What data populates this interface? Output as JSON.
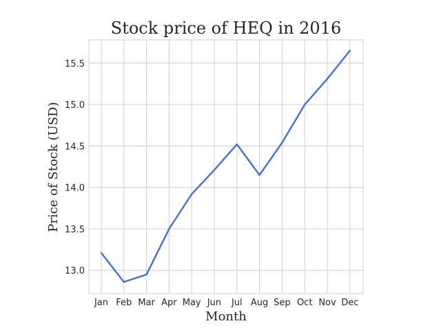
{
  "chart_data": {
    "type": "line",
    "title": "Stock price of HEQ in 2016",
    "xlabel": "Month",
    "ylabel": "Price of Stock (USD)",
    "categories": [
      "Jan",
      "Feb",
      "Mar",
      "Apr",
      "May",
      "Jun",
      "Jul",
      "Aug",
      "Sep",
      "Oct",
      "Nov",
      "Dec"
    ],
    "series": [
      {
        "values": [
          13.21,
          12.86,
          12.95,
          13.5,
          13.92,
          14.21,
          14.52,
          14.15,
          14.54,
          15.0,
          15.31,
          15.65
        ],
        "color": "#4c72c8"
      }
    ],
    "ylim": [
      12.72,
      15.78
    ],
    "yticks": [
      13.0,
      13.5,
      14.0,
      14.5,
      15.0,
      15.5
    ],
    "ytick_labels": [
      "13.0",
      "13.5",
      "14.0",
      "14.5",
      "15.0",
      "15.5"
    ],
    "grid": true,
    "legend": "none"
  }
}
